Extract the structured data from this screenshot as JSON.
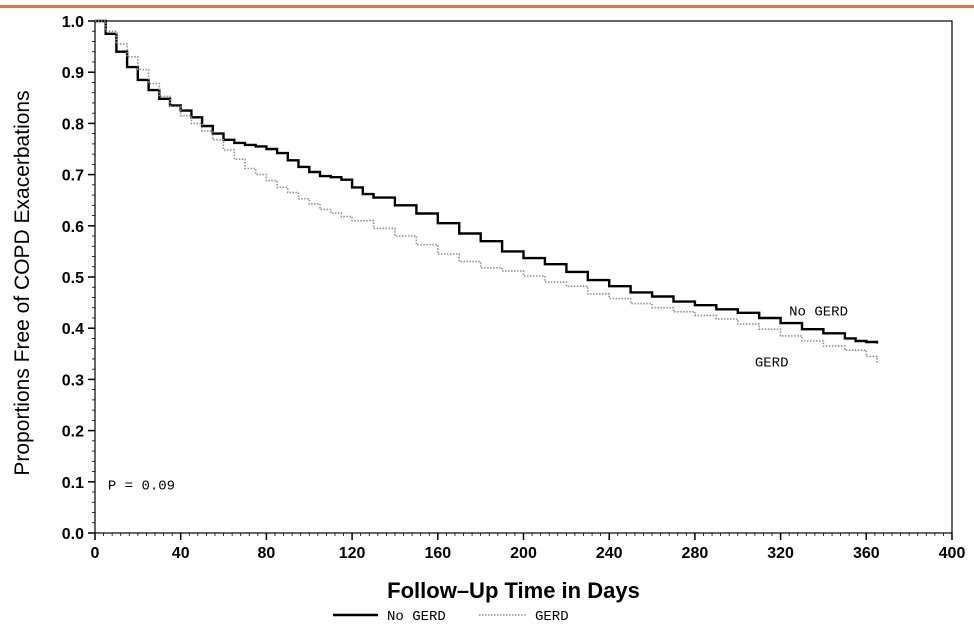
{
  "chart_data": {
    "type": "line",
    "title": "",
    "xlabel": "Follow–Up Time in Days",
    "ylabel": "Proportions Free of COPD Exacerbations",
    "xlim": [
      0,
      400
    ],
    "ylim": [
      0.0,
      1.0
    ],
    "xticks": [
      "0",
      "40",
      "80",
      "120",
      "160",
      "200",
      "240",
      "280",
      "320",
      "360",
      "400"
    ],
    "yticks": [
      "0.0",
      "0.1",
      "0.2",
      "0.3",
      "0.4",
      "0.5",
      "0.6",
      "0.7",
      "0.8",
      "0.9",
      "1.0"
    ],
    "grid": false,
    "legend_position": "bottom",
    "annotation": "P = 0.09",
    "series": [
      {
        "name": "No GERD",
        "label": "No GERD",
        "style": "solid",
        "color": "#000000",
        "x": [
          0,
          5,
          10,
          15,
          20,
          25,
          30,
          35,
          40,
          45,
          50,
          55,
          60,
          65,
          70,
          75,
          80,
          85,
          90,
          95,
          100,
          105,
          110,
          115,
          120,
          125,
          130,
          140,
          150,
          160,
          170,
          180,
          190,
          200,
          210,
          220,
          230,
          240,
          250,
          260,
          270,
          280,
          290,
          300,
          310,
          320,
          330,
          340,
          350,
          355,
          360,
          365
        ],
        "y": [
          1.0,
          0.975,
          0.94,
          0.91,
          0.885,
          0.865,
          0.848,
          0.835,
          0.825,
          0.812,
          0.795,
          0.78,
          0.768,
          0.762,
          0.758,
          0.755,
          0.75,
          0.742,
          0.728,
          0.715,
          0.705,
          0.697,
          0.695,
          0.69,
          0.675,
          0.662,
          0.655,
          0.64,
          0.624,
          0.605,
          0.585,
          0.57,
          0.55,
          0.537,
          0.525,
          0.51,
          0.494,
          0.482,
          0.47,
          0.462,
          0.452,
          0.445,
          0.437,
          0.43,
          0.42,
          0.41,
          0.398,
          0.39,
          0.38,
          0.375,
          0.373,
          0.37
        ]
      },
      {
        "name": "GERD",
        "label": "GERD",
        "style": "dotted",
        "color": "#909090",
        "x": [
          0,
          5,
          10,
          15,
          20,
          25,
          30,
          35,
          40,
          45,
          50,
          55,
          60,
          65,
          70,
          75,
          80,
          85,
          90,
          95,
          100,
          105,
          110,
          115,
          120,
          130,
          140,
          150,
          160,
          170,
          180,
          190,
          200,
          210,
          220,
          230,
          240,
          250,
          260,
          270,
          280,
          290,
          300,
          310,
          320,
          330,
          340,
          350,
          360,
          365
        ],
        "y": [
          1.0,
          0.98,
          0.955,
          0.93,
          0.905,
          0.878,
          0.853,
          0.833,
          0.815,
          0.8,
          0.785,
          0.768,
          0.748,
          0.73,
          0.712,
          0.7,
          0.688,
          0.675,
          0.665,
          0.653,
          0.643,
          0.632,
          0.625,
          0.618,
          0.61,
          0.595,
          0.58,
          0.563,
          0.545,
          0.53,
          0.518,
          0.512,
          0.502,
          0.49,
          0.482,
          0.467,
          0.458,
          0.448,
          0.44,
          0.432,
          0.425,
          0.418,
          0.408,
          0.398,
          0.385,
          0.375,
          0.365,
          0.357,
          0.345,
          0.333
        ]
      }
    ]
  }
}
